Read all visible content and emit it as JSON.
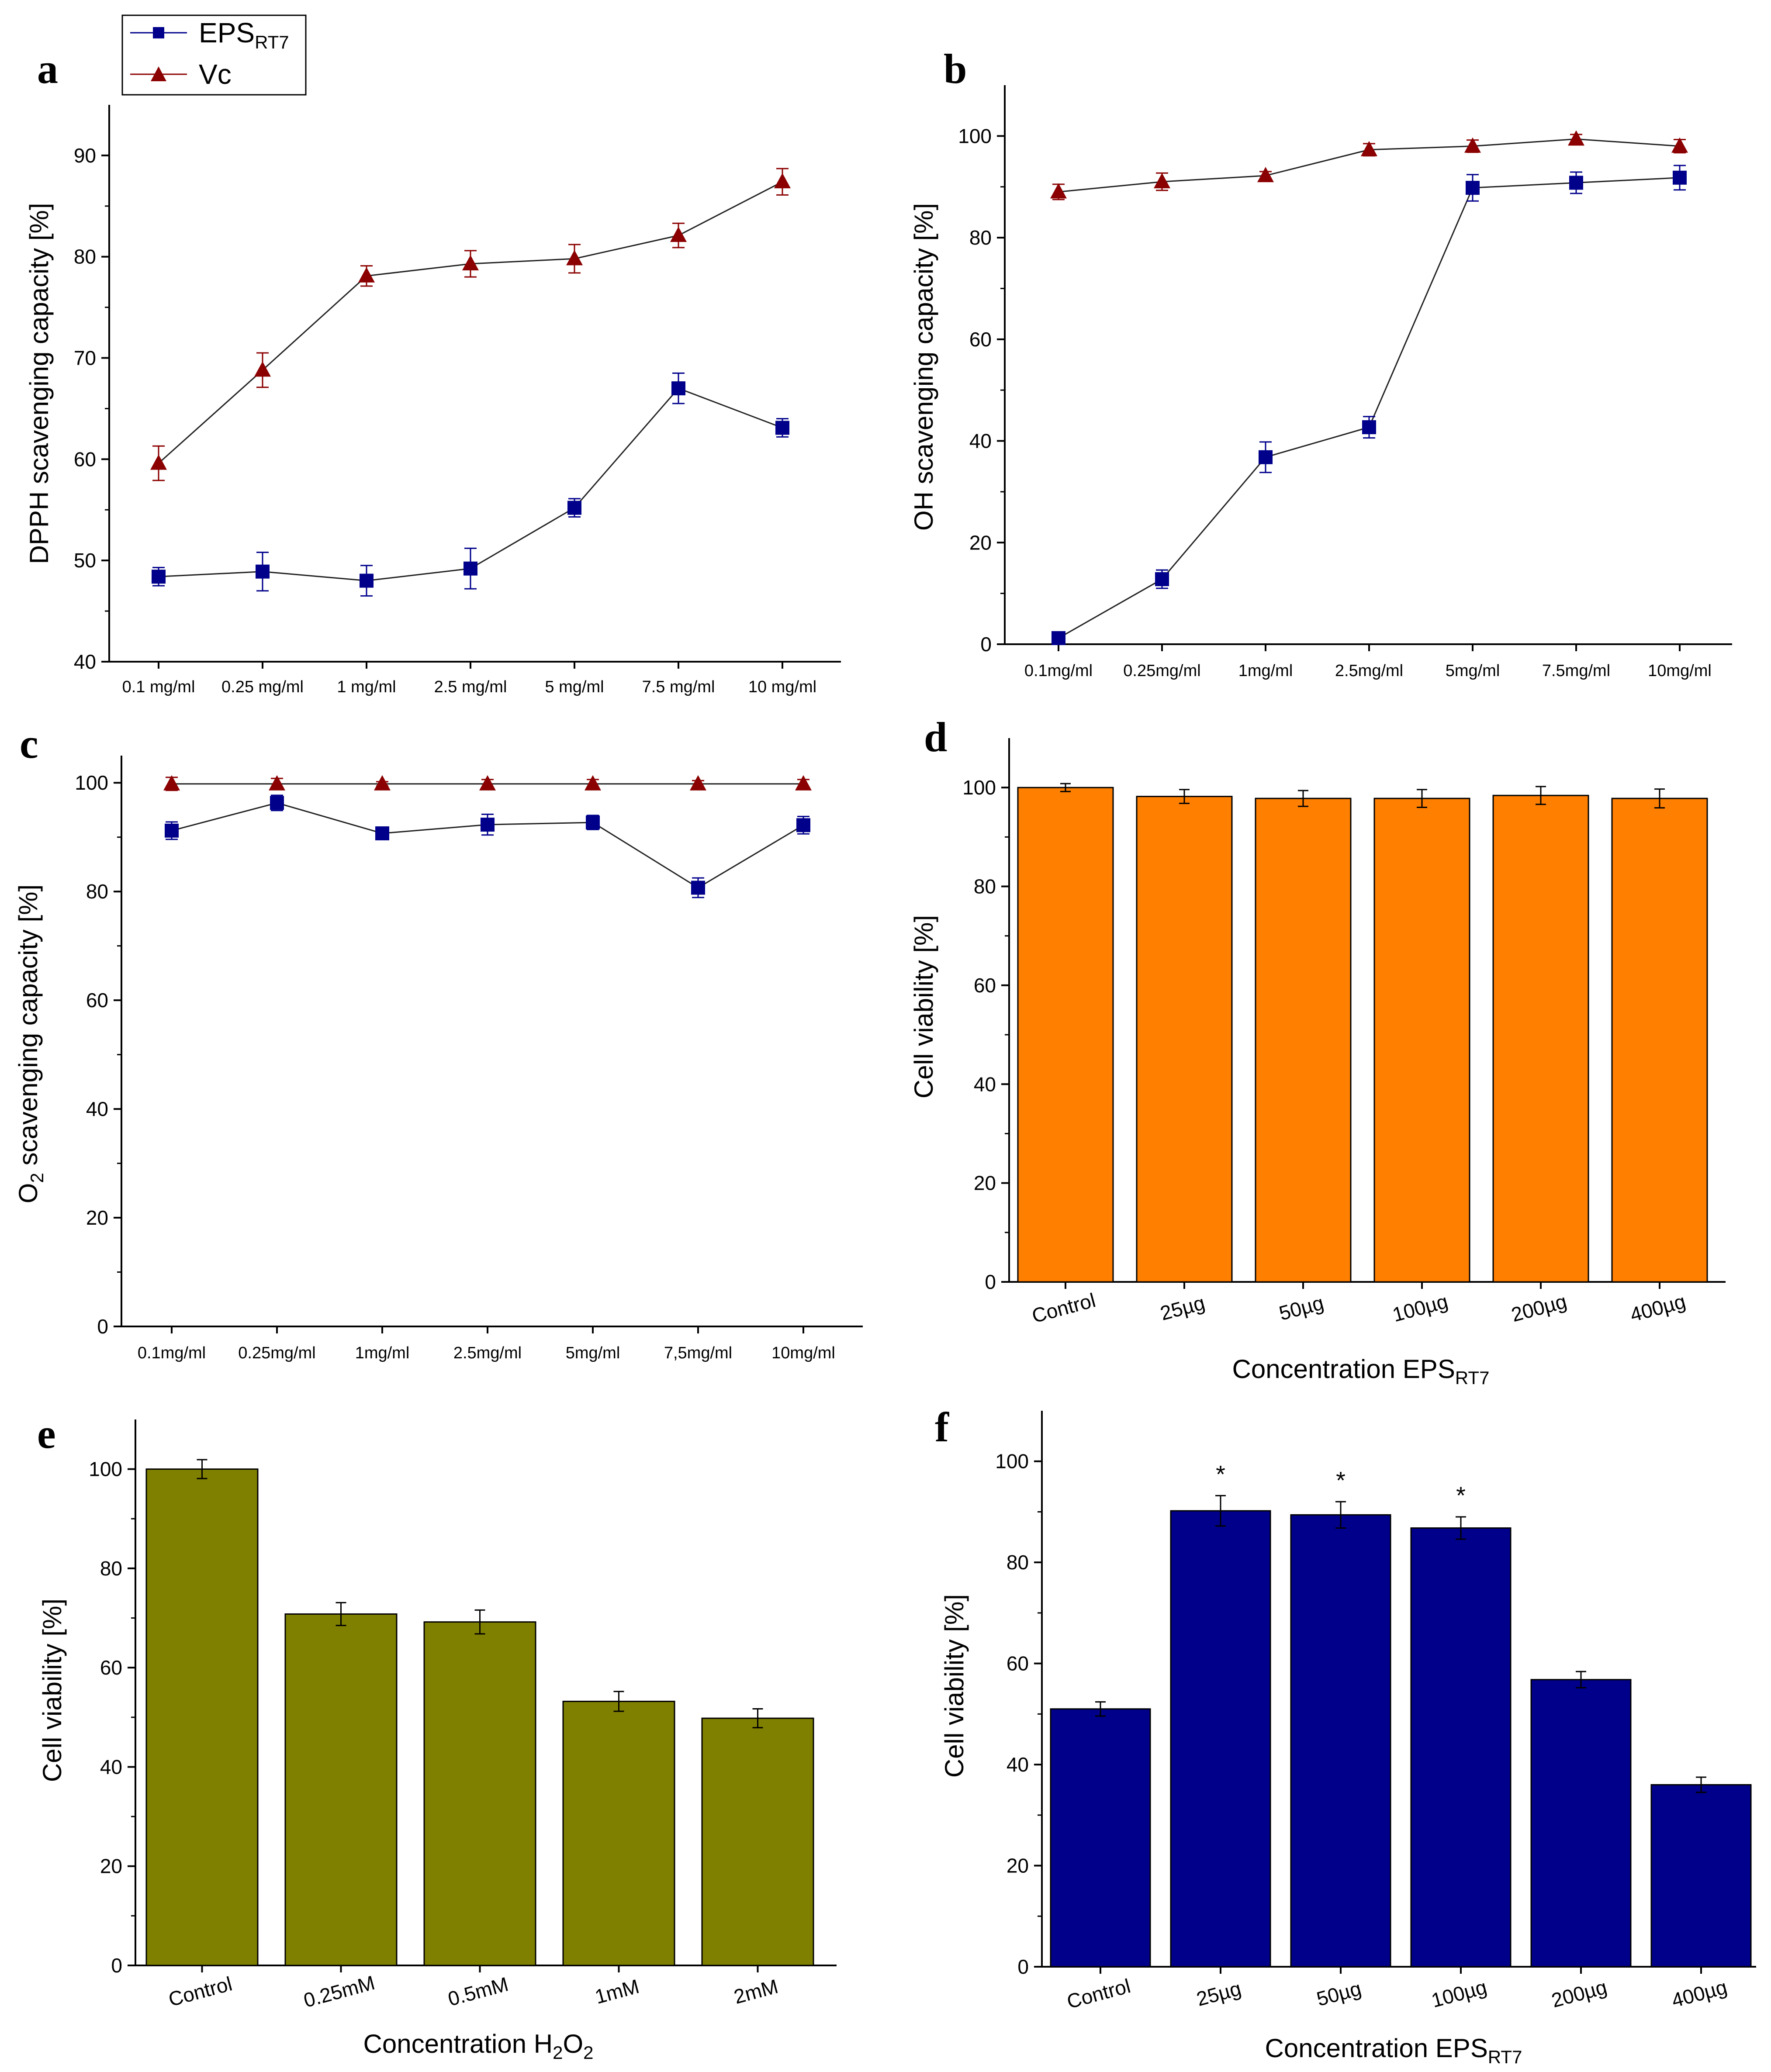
{
  "colors": {
    "eps": "#00008b",
    "vc": "#8b0000",
    "bar_d": "#ff7f00",
    "bar_e": "#808000",
    "bar_f": "#00008b"
  },
  "legend": {
    "eps_base": "EPS",
    "eps_sub": "RT7",
    "vc": "Vc"
  },
  "chart_data": [
    {
      "panel": "a",
      "type": "line",
      "title": "",
      "ylabel": "DPPH scavenging capacity [%]",
      "xlabel": "",
      "ylim": [
        40,
        95
      ],
      "yticks": [
        40,
        50,
        60,
        70,
        80,
        90
      ],
      "categories": [
        "0.1 mg/ml",
        "0.25 mg/ml",
        "1 mg/ml",
        "2.5 mg/ml",
        "5 mg/ml",
        "7.5 mg/ml",
        "10 mg/ml"
      ],
      "series": [
        {
          "name": "EPS RT7",
          "marker": "square",
          "values": [
            48.4,
            48.9,
            48.0,
            49.2,
            55.2,
            67.0,
            63.1
          ],
          "errors": [
            0.9,
            1.9,
            1.5,
            2.0,
            0.9,
            1.5,
            0.9
          ]
        },
        {
          "name": "Vc",
          "marker": "triangle",
          "values": [
            59.6,
            68.8,
            78.1,
            79.3,
            79.8,
            82.1,
            87.4
          ],
          "errors": [
            1.7,
            1.7,
            1.0,
            1.3,
            1.4,
            1.2,
            1.3
          ]
        }
      ]
    },
    {
      "panel": "b",
      "type": "line",
      "title": "",
      "ylabel": "OH scavenging capacity [%]",
      "xlabel": "",
      "ylim": [
        0,
        110
      ],
      "yticks": [
        0,
        20,
        40,
        60,
        80,
        100
      ],
      "categories": [
        "0.1mg/ml",
        "0.25mg/ml",
        "1mg/ml",
        "2.5mg/ml",
        "5mg/ml",
        "7.5mg/ml",
        "10mg/ml"
      ],
      "series": [
        {
          "name": "EPS RT7",
          "marker": "square",
          "values": [
            1.2,
            12.8,
            36.8,
            42.7,
            89.8,
            90.8,
            91.8
          ],
          "errors": [
            0.6,
            1.8,
            3.0,
            2.1,
            2.6,
            2.1,
            2.4
          ]
        },
        {
          "name": "Vc",
          "marker": "triangle",
          "values": [
            89.0,
            91.0,
            92.2,
            97.3,
            98.0,
            99.4,
            98.0
          ],
          "errors": [
            1.5,
            1.7,
            0.8,
            1.2,
            1.2,
            0.9,
            1.3
          ]
        }
      ]
    },
    {
      "panel": "c",
      "type": "line",
      "title": "",
      "ylabel_main": "O",
      "ylabel_sub": "2",
      "ylabel_rest": " scavenging capacity [%]",
      "xlabel": "",
      "ylim": [
        0,
        105
      ],
      "yticks": [
        0,
        20,
        40,
        60,
        80,
        100
      ],
      "categories": [
        "0.1mg/ml",
        "0.25mg/ml",
        "1mg/ml",
        "2.5mg/ml",
        "5mg/ml",
        "7,5mg/ml",
        "10mg/ml"
      ],
      "series": [
        {
          "name": "EPS RT7",
          "marker": "square",
          "values": [
            91.2,
            96.3,
            90.7,
            92.3,
            92.7,
            80.7,
            92.2
          ],
          "errors": [
            1.6,
            1.4,
            0.5,
            1.9,
            1.3,
            1.8,
            1.6
          ]
        },
        {
          "name": "Vc",
          "marker": "triangle",
          "values": [
            99.8,
            99.8,
            99.8,
            99.8,
            99.8,
            99.8,
            99.8
          ],
          "errors": [
            1.2,
            1.0,
            0.4,
            0.8,
            0.8,
            0.6,
            0.8
          ]
        }
      ]
    },
    {
      "panel": "d",
      "type": "bar",
      "title": "",
      "ylabel": "Cell viability [%]",
      "xlabel_base": "Concentration EPS",
      "xlabel_sub": "RT7",
      "ylim": [
        0,
        110
      ],
      "yticks": [
        0,
        20,
        40,
        60,
        80,
        100
      ],
      "categories": [
        "Control",
        "25µg",
        "50µg",
        "100µg",
        "200µg",
        "400µg"
      ],
      "values": [
        100.0,
        98.2,
        97.8,
        97.8,
        98.4,
        97.8
      ],
      "errors": [
        0.8,
        1.4,
        1.6,
        1.8,
        1.8,
        1.9
      ],
      "annotations": []
    },
    {
      "panel": "e",
      "type": "bar",
      "title": "",
      "ylabel": "Cell viability [%]",
      "xlabel_base": "Concentration H",
      "xlabel_sub": "2",
      "xlabel_mid": "O",
      "xlabel_sub2": "2",
      "ylim": [
        0,
        110
      ],
      "yticks": [
        0,
        20,
        40,
        60,
        80,
        100
      ],
      "categories": [
        "Control",
        "0.25mM",
        "0.5mM",
        "1mM",
        "2mM"
      ],
      "values": [
        100.0,
        70.8,
        69.2,
        53.2,
        49.8
      ],
      "errors": [
        1.9,
        2.3,
        2.4,
        2.0,
        1.9
      ],
      "annotations": []
    },
    {
      "panel": "f",
      "type": "bar",
      "title": "",
      "ylabel": "Cell viability [%]",
      "xlabel_base": "Concentration EPS",
      "xlabel_sub": "RT7",
      "ylim": [
        0,
        110
      ],
      "yticks": [
        0,
        20,
        40,
        60,
        80,
        100
      ],
      "categories": [
        "Control",
        "25µg",
        "50µg",
        "100µg",
        "200µg",
        "400µg"
      ],
      "values": [
        51.0,
        90.2,
        89.4,
        86.8,
        56.8,
        36.0
      ],
      "errors": [
        1.4,
        3.0,
        2.6,
        2.2,
        1.6,
        1.5
      ],
      "annotations": [
        "",
        "*",
        "*",
        "*",
        "",
        ""
      ]
    }
  ]
}
